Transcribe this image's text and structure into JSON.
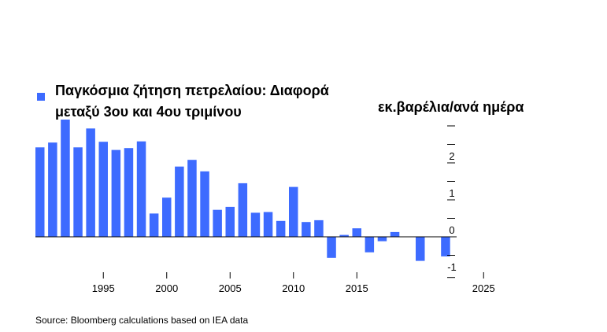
{
  "chart_data": {
    "type": "bar",
    "legend": [
      "Παγκόσμια ζήτηση πετρελαίου: Διαφορά",
      "μεταξύ 3ου και 4ου τριμίνου"
    ],
    "ylabel": "εκ.βαρέλια/ανά ημέρα",
    "ylim": [
      -1.1,
      3.0
    ],
    "yticks": [
      -1,
      0,
      1,
      2
    ],
    "ytick_labels": [
      "-1",
      "0",
      "1",
      "2"
    ],
    "xticks": [
      1995,
      2000,
      2005,
      2010,
      2015,
      2025
    ],
    "x": [
      1990,
      1991,
      1992,
      1993,
      1994,
      1995,
      1996,
      1997,
      1998,
      1999,
      2000,
      2001,
      2002,
      2003,
      2004,
      2005,
      2006,
      2007,
      2008,
      2009,
      2010,
      2011,
      2012,
      2013,
      2014,
      2015,
      2016,
      2017,
      2018,
      2019,
      2020,
      2021,
      2022,
      2023,
      2024
    ],
    "values": [
      2.42,
      2.55,
      3.17,
      2.42,
      2.93,
      2.57,
      2.35,
      2.4,
      2.58,
      0.63,
      1.06,
      1.9,
      2.08,
      1.77,
      0.73,
      0.81,
      1.45,
      0.65,
      0.67,
      0.43,
      1.35,
      0.4,
      0.45,
      -0.57,
      0.05,
      0.23,
      -0.42,
      -0.12,
      0.13,
      0.0,
      -0.65,
      0.0,
      -0.53,
      0.0,
      0.0
    ],
    "color": "#3d6bff",
    "grid": false,
    "legend_placement": "top-left"
  },
  "source": "Source: Bloomberg calculations based on IEA data"
}
